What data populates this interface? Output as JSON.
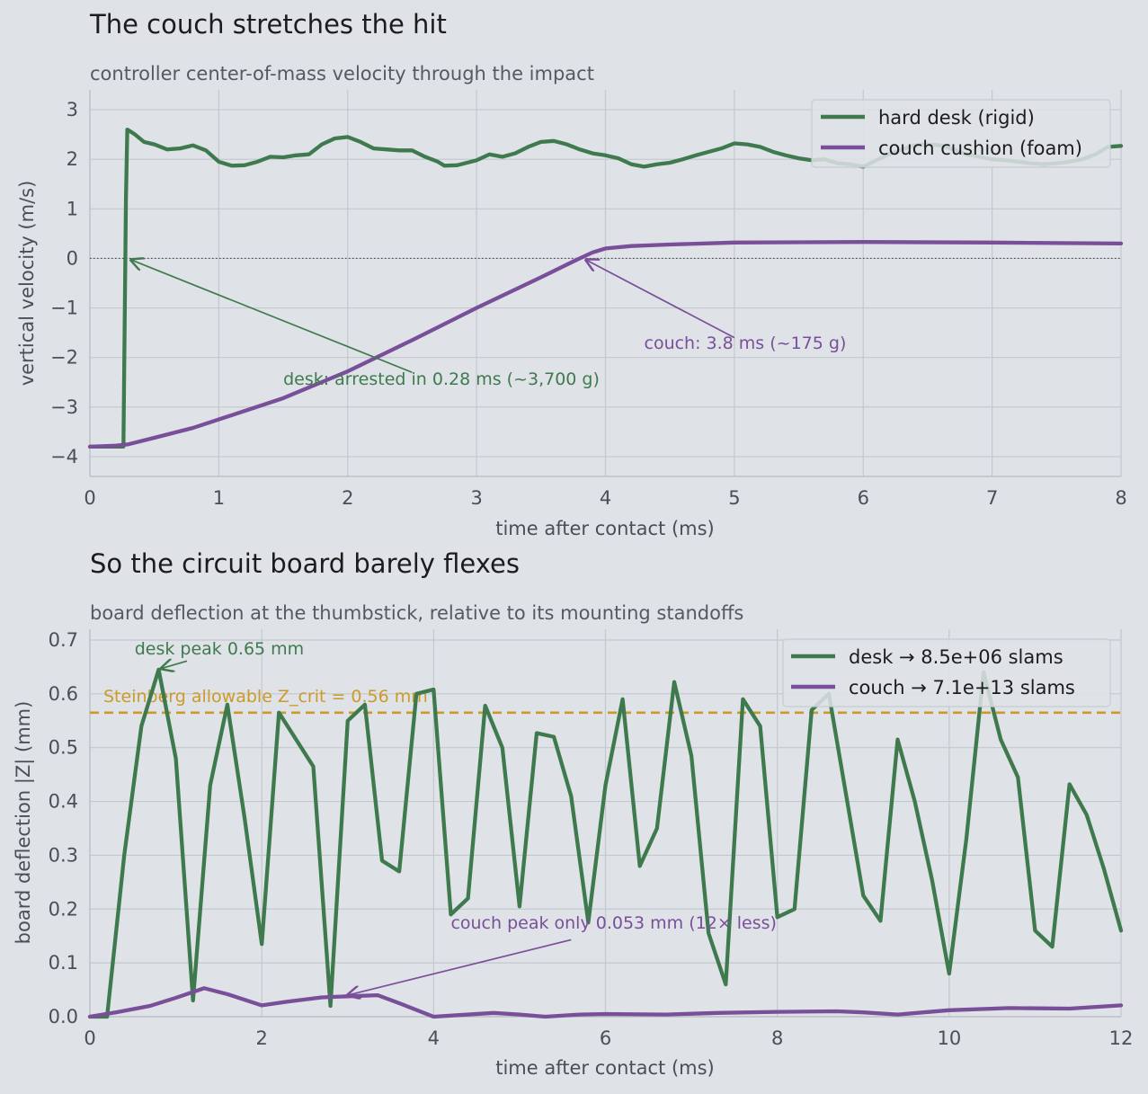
{
  "colors": {
    "desk": "#3f7a4e",
    "couch": "#7a4f9a",
    "threshold": "#cc9a28",
    "background": "#dfe3e7"
  },
  "chart_data": [
    {
      "type": "line",
      "title": "The couch stretches the hit",
      "subtitle": "controller center-of-mass velocity through the impact",
      "xlabel": "time after contact  (ms)",
      "ylabel": "vertical velocity  (m/s)",
      "xlim": [
        0,
        8
      ],
      "ylim": [
        -4.4,
        3.4
      ],
      "xticks": [
        0,
        1,
        2,
        3,
        4,
        5,
        6,
        7,
        8
      ],
      "yticks": [
        -4,
        -3,
        -2,
        -1,
        0,
        1,
        2,
        3
      ],
      "ytick_labels": [
        "−4",
        "−3",
        "−2",
        "−1",
        "0",
        "1",
        "2",
        "3"
      ],
      "grid": true,
      "legend_position": "top-right",
      "reference_line": {
        "y": 0,
        "style": "dotted"
      },
      "series": [
        {
          "name": "hard desk (rigid)",
          "color_key": "desk",
          "points": [
            [
              0,
              -3.8
            ],
            [
              0.26,
              -3.8
            ],
            [
              0.28,
              1.2
            ],
            [
              0.29,
              2.6
            ],
            [
              0.35,
              2.5
            ],
            [
              0.42,
              2.35
            ],
            [
              0.5,
              2.3
            ],
            [
              0.6,
              2.2
            ],
            [
              0.7,
              2.22
            ],
            [
              0.8,
              2.28
            ],
            [
              0.9,
              2.18
            ],
            [
              1.0,
              1.95
            ],
            [
              1.1,
              1.87
            ],
            [
              1.2,
              1.88
            ],
            [
              1.3,
              1.95
            ],
            [
              1.4,
              2.05
            ],
            [
              1.5,
              2.04
            ],
            [
              1.6,
              2.08
            ],
            [
              1.7,
              2.1
            ],
            [
              1.8,
              2.3
            ],
            [
              1.9,
              2.42
            ],
            [
              2.0,
              2.45
            ],
            [
              2.1,
              2.35
            ],
            [
              2.2,
              2.22
            ],
            [
              2.3,
              2.2
            ],
            [
              2.4,
              2.18
            ],
            [
              2.5,
              2.18
            ],
            [
              2.6,
              2.05
            ],
            [
              2.7,
              1.95
            ],
            [
              2.75,
              1.87
            ],
            [
              2.85,
              1.88
            ],
            [
              3.0,
              1.98
            ],
            [
              3.1,
              2.1
            ],
            [
              3.2,
              2.05
            ],
            [
              3.3,
              2.12
            ],
            [
              3.4,
              2.25
            ],
            [
              3.5,
              2.35
            ],
            [
              3.6,
              2.37
            ],
            [
              3.7,
              2.3
            ],
            [
              3.8,
              2.2
            ],
            [
              3.9,
              2.12
            ],
            [
              4.0,
              2.08
            ],
            [
              4.1,
              2.02
            ],
            [
              4.2,
              1.9
            ],
            [
              4.3,
              1.85
            ],
            [
              4.4,
              1.9
            ],
            [
              4.5,
              1.93
            ],
            [
              4.6,
              2.0
            ],
            [
              4.7,
              2.08
            ],
            [
              4.8,
              2.15
            ],
            [
              4.9,
              2.22
            ],
            [
              5.0,
              2.32
            ],
            [
              5.1,
              2.3
            ],
            [
              5.2,
              2.25
            ],
            [
              5.3,
              2.15
            ],
            [
              5.4,
              2.08
            ],
            [
              5.5,
              2.02
            ],
            [
              5.6,
              1.98
            ],
            [
              5.7,
              2.0
            ],
            [
              5.8,
              1.92
            ],
            [
              5.9,
              1.9
            ],
            [
              6.0,
              1.85
            ],
            [
              6.1,
              1.98
            ],
            [
              6.2,
              2.1
            ],
            [
              6.3,
              2.2
            ],
            [
              6.4,
              2.28
            ],
            [
              6.5,
              2.3
            ],
            [
              6.6,
              2.28
            ],
            [
              6.7,
              2.2
            ],
            [
              6.8,
              2.1
            ],
            [
              6.9,
              2.05
            ],
            [
              7.0,
              2.0
            ],
            [
              7.1,
              1.98
            ],
            [
              7.2,
              1.95
            ],
            [
              7.3,
              1.92
            ],
            [
              7.4,
              1.9
            ],
            [
              7.5,
              1.92
            ],
            [
              7.6,
              1.95
            ],
            [
              7.7,
              2.0
            ],
            [
              7.8,
              2.1
            ],
            [
              7.9,
              2.25
            ],
            [
              8.0,
              2.27
            ]
          ]
        },
        {
          "name": "couch cushion (foam)",
          "color_key": "couch",
          "points": [
            [
              0,
              -3.8
            ],
            [
              0.2,
              -3.78
            ],
            [
              0.3,
              -3.75
            ],
            [
              0.5,
              -3.62
            ],
            [
              0.8,
              -3.42
            ],
            [
              1.0,
              -3.25
            ],
            [
              1.2,
              -3.08
            ],
            [
              1.5,
              -2.82
            ],
            [
              2.0,
              -2.28
            ],
            [
              2.5,
              -1.65
            ],
            [
              3.0,
              -1.0
            ],
            [
              3.5,
              -0.38
            ],
            [
              3.8,
              0.0
            ],
            [
              3.9,
              0.12
            ],
            [
              4.0,
              0.2
            ],
            [
              4.2,
              0.25
            ],
            [
              4.5,
              0.28
            ],
            [
              5.0,
              0.32
            ],
            [
              6.0,
              0.33
            ],
            [
              7.0,
              0.32
            ],
            [
              8.0,
              0.3
            ]
          ]
        }
      ],
      "annotations": [
        {
          "text": "desk: arrested in 0.28 ms  (~3,700 g)",
          "color_key": "desk",
          "text_pos": [
            1.5,
            -2.55
          ],
          "arrow_from": [
            2.5,
            -2.3
          ],
          "arrow_to": [
            0.32,
            -0.03
          ]
        },
        {
          "text": "couch: 3.8 ms  (~175 g)",
          "color_key": "couch",
          "text_pos": [
            4.3,
            -1.82
          ],
          "arrow_from": [
            5.0,
            -1.6
          ],
          "arrow_to": [
            3.85,
            -0.03
          ]
        }
      ]
    },
    {
      "type": "line",
      "title": "So the circuit board barely flexes",
      "subtitle": "board deflection at the thumbstick, relative to its mounting standoffs",
      "xlabel": "time after contact  (ms)",
      "ylabel": "board deflection  |Z|  (mm)",
      "xlim": [
        0,
        12
      ],
      "ylim": [
        0,
        0.72
      ],
      "xticks": [
        0,
        2,
        4,
        6,
        8,
        10,
        12
      ],
      "yticks": [
        0.0,
        0.1,
        0.2,
        0.3,
        0.4,
        0.5,
        0.6,
        0.7
      ],
      "ytick_labels": [
        "0.0",
        "0.1",
        "0.2",
        "0.3",
        "0.4",
        "0.5",
        "0.6",
        "0.7"
      ],
      "grid": true,
      "legend_position": "top-right",
      "threshold": {
        "y": 0.565,
        "label": "Steinberg allowable  Z_crit = 0.56 mm",
        "color_key": "threshold"
      },
      "series": [
        {
          "name": "desk  →  8.5e+06 slams",
          "color_key": "desk",
          "points": [
            [
              0,
              0
            ],
            [
              0.2,
              0.0
            ],
            [
              0.4,
              0.3
            ],
            [
              0.6,
              0.54
            ],
            [
              0.8,
              0.645
            ],
            [
              1.0,
              0.48
            ],
            [
              1.2,
              0.03
            ],
            [
              1.4,
              0.43
            ],
            [
              1.6,
              0.58
            ],
            [
              1.8,
              0.37
            ],
            [
              2.0,
              0.135
            ],
            [
              2.2,
              0.565
            ],
            [
              2.6,
              0.465
            ],
            [
              2.8,
              0.02
            ],
            [
              3.0,
              0.55
            ],
            [
              3.2,
              0.58
            ],
            [
              3.4,
              0.29
            ],
            [
              3.6,
              0.27
            ],
            [
              3.8,
              0.6
            ],
            [
              4.0,
              0.608
            ],
            [
              4.2,
              0.19
            ],
            [
              4.4,
              0.22
            ],
            [
              4.6,
              0.578
            ],
            [
              4.8,
              0.5
            ],
            [
              5.0,
              0.205
            ],
            [
              5.2,
              0.527
            ],
            [
              5.4,
              0.52
            ],
            [
              5.6,
              0.41
            ],
            [
              5.8,
              0.175
            ],
            [
              6.0,
              0.43
            ],
            [
              6.2,
              0.59
            ],
            [
              6.4,
              0.28
            ],
            [
              6.6,
              0.35
            ],
            [
              6.8,
              0.622
            ],
            [
              7.0,
              0.485
            ],
            [
              7.2,
              0.155
            ],
            [
              7.4,
              0.06
            ],
            [
              7.6,
              0.59
            ],
            [
              7.8,
              0.54
            ],
            [
              8.0,
              0.185
            ],
            [
              8.2,
              0.2
            ],
            [
              8.4,
              0.57
            ],
            [
              8.6,
              0.6
            ],
            [
              9.0,
              0.225
            ],
            [
              9.2,
              0.178
            ],
            [
              9.4,
              0.515
            ],
            [
              9.6,
              0.4
            ],
            [
              9.8,
              0.255
            ],
            [
              10.0,
              0.08
            ],
            [
              10.2,
              0.33
            ],
            [
              10.4,
              0.64
            ],
            [
              10.6,
              0.515
            ],
            [
              10.8,
              0.445
            ],
            [
              11.0,
              0.16
            ],
            [
              11.2,
              0.13
            ],
            [
              11.4,
              0.432
            ],
            [
              11.6,
              0.375
            ],
            [
              11.8,
              0.275
            ],
            [
              12.0,
              0.16
            ]
          ]
        },
        {
          "name": "couch →  7.1e+13 slams",
          "color_key": "couch",
          "points": [
            [
              0,
              0
            ],
            [
              0.3,
              0.008
            ],
            [
              0.7,
              0.02
            ],
            [
              1.0,
              0.035
            ],
            [
              1.33,
              0.053
            ],
            [
              1.6,
              0.042
            ],
            [
              2.0,
              0.021
            ],
            [
              2.3,
              0.028
            ],
            [
              2.7,
              0.036
            ],
            [
              3.0,
              0.038
            ],
            [
              3.35,
              0.04
            ],
            [
              3.6,
              0.025
            ],
            [
              4.0,
              0.0
            ],
            [
              4.3,
              0.003
            ],
            [
              4.7,
              0.007
            ],
            [
              5.0,
              0.004
            ],
            [
              5.3,
              0.0
            ],
            [
              5.7,
              0.004
            ],
            [
              6.0,
              0.005
            ],
            [
              6.7,
              0.004
            ],
            [
              7.3,
              0.007
            ],
            [
              8.0,
              0.009
            ],
            [
              8.7,
              0.01
            ],
            [
              9.0,
              0.008
            ],
            [
              9.4,
              0.004
            ],
            [
              9.7,
              0.008
            ],
            [
              10.0,
              0.012
            ],
            [
              10.7,
              0.016
            ],
            [
              11.4,
              0.015
            ],
            [
              12.0,
              0.021
            ]
          ]
        }
      ],
      "annotations": [
        {
          "text": "desk peak 0.65 mm",
          "color_key": "desk",
          "text_pos": [
            0.52,
            0.673
          ],
          "arrow_from": [
            1.13,
            0.661
          ],
          "arrow_to": [
            0.83,
            0.647
          ]
        },
        {
          "text": "couch peak only 0.053 mm  (12× less)",
          "color_key": "couch",
          "text_pos": [
            4.2,
            0.164
          ],
          "arrow_from": [
            5.6,
            0.143
          ],
          "arrow_to": [
            3.0,
            0.04
          ]
        }
      ]
    }
  ]
}
